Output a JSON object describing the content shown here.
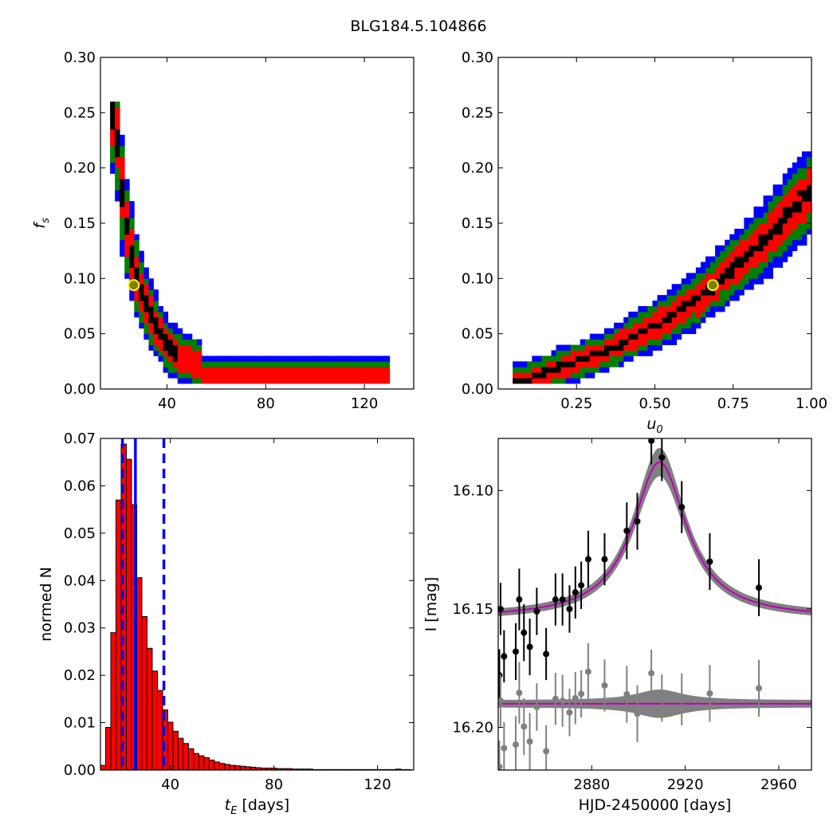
{
  "title": "BLG184.5.104866",
  "chart_data": [
    {
      "id": "tE_vs_fs",
      "type": "heatmap",
      "xlabel": "",
      "ylabel": "f_s",
      "xlim": [
        13,
        140
      ],
      "ylim": [
        0.0,
        0.3
      ],
      "xticks": [
        40,
        80,
        120
      ],
      "yticks": [
        0.0,
        0.05,
        0.1,
        0.15,
        0.2,
        0.25,
        0.3
      ],
      "ytick_labels": [
        "0.00",
        "0.05",
        "0.10",
        "0.15",
        "0.20",
        "0.25",
        "0.30"
      ],
      "levels": [
        "black",
        "red",
        "green",
        "blue"
      ],
      "curve": {
        "ridge_x": [
          19,
          20,
          21,
          23,
          24,
          26,
          28,
          30,
          33,
          36,
          40,
          45,
          50,
          55
        ],
        "ridge_y": [
          0.25,
          0.22,
          0.19,
          0.16,
          0.14,
          0.12,
          0.1,
          0.085,
          0.07,
          0.055,
          0.04,
          0.03,
          0.025,
          0.02
        ],
        "tail": {
          "x_from": 55,
          "x_to": 130,
          "y": 0.01
        }
      },
      "best_fit": {
        "x": 26.5,
        "y": 0.094
      }
    },
    {
      "id": "u0_vs_fs",
      "type": "heatmap",
      "xlabel": "u_0",
      "ylabel": "",
      "xlim": [
        0.0,
        1.0
      ],
      "ylim": [
        0.0,
        0.3
      ],
      "xticks": [
        0.25,
        0.5,
        0.75,
        1.0
      ],
      "xtick_labels": [
        "0.25",
        "0.50",
        "0.75",
        "1.00"
      ],
      "yticks": [
        0.0,
        0.05,
        0.1,
        0.15,
        0.2,
        0.25,
        0.3
      ],
      "ytick_labels": [
        "0.00",
        "0.05",
        "0.10",
        "0.15",
        "0.20",
        "0.25",
        "0.30"
      ],
      "levels": [
        "black",
        "red",
        "green",
        "blue"
      ],
      "curve": {
        "ridge_x": [
          0.08,
          0.15,
          0.25,
          0.35,
          0.45,
          0.55,
          0.65,
          0.75,
          0.85,
          0.95,
          1.0
        ],
        "ridge_y": [
          0.008,
          0.015,
          0.025,
          0.035,
          0.05,
          0.065,
          0.085,
          0.11,
          0.135,
          0.165,
          0.18
        ]
      },
      "best_fit": {
        "x": 0.685,
        "y": 0.094
      }
    },
    {
      "id": "tE_histogram",
      "type": "bar",
      "xlabel": "t_E [days]",
      "ylabel": "normed N",
      "xlim": [
        13,
        134
      ],
      "ylim": [
        0.0,
        0.07
      ],
      "xticks": [
        40,
        80,
        120
      ],
      "yticks": [
        0.0,
        0.01,
        0.02,
        0.03,
        0.04,
        0.05,
        0.06,
        0.07
      ],
      "ytick_labels": [
        "0.00",
        "0.01",
        "0.02",
        "0.03",
        "0.04",
        "0.05",
        "0.06",
        "0.07"
      ],
      "bin_start": 13,
      "bin_width": 2,
      "values": [
        0.001,
        0.009,
        0.029,
        0.057,
        0.0688,
        0.0656,
        0.056,
        0.0406,
        0.0324,
        0.0257,
        0.0209,
        0.0168,
        0.0127,
        0.0101,
        0.0082,
        0.0067,
        0.0056,
        0.0045,
        0.0035,
        0.003,
        0.0026,
        0.0021,
        0.0017,
        0.0014,
        0.0012,
        0.001,
        0.0009,
        0.0008,
        0.0007,
        0.0006,
        0.0005,
        0.0004,
        0.0004,
        0.0004,
        0.0003,
        0.0003,
        0.0003,
        0.0002,
        0.0002,
        0.0002,
        0.0002,
        0.0001,
        0.0001,
        0.0001,
        0.0001,
        0.0001,
        0.0001,
        0.0001,
        0.0001,
        0.0001,
        0.0001,
        0.0001,
        0.0001,
        0.0001,
        0.0001,
        0.0001,
        0.0001,
        0.0002,
        0.0001,
        0.0001
      ],
      "bar_color": "#ff0000",
      "vlines": [
        {
          "x": 26.5,
          "style": "solid",
          "color": "#0000ff"
        },
        {
          "x": 21.5,
          "style": "dashed",
          "color": "#0000ff"
        },
        {
          "x": 37.5,
          "style": "dashed",
          "color": "#0000ff"
        }
      ]
    },
    {
      "id": "lightcurve",
      "type": "scatter",
      "xlabel": "HJD-2450000 [days]",
      "ylabel": "I [mag]",
      "xlim": [
        2840,
        2974
      ],
      "ylim": [
        16.218,
        16.078
      ],
      "y_inverted": true,
      "xticks": [
        2880,
        2920,
        2960
      ],
      "yticks": [
        16.1,
        16.15,
        16.2
      ],
      "ytick_labels": [
        "16.10",
        "16.15",
        "16.20"
      ],
      "model": {
        "t0": 2909,
        "peak_mag": 16.088,
        "base_mag": 16.154,
        "width": 14,
        "color": "#bb00bb"
      },
      "model_band_color": "#808080",
      "points": [
        {
          "x": 2840.5,
          "y": 16.178,
          "err": 0.011
        },
        {
          "x": 2841.0,
          "y": 16.15,
          "err": 0.011
        },
        {
          "x": 2842.5,
          "y": 16.17,
          "err": 0.011
        },
        {
          "x": 2847.5,
          "y": 16.168,
          "err": 0.012
        },
        {
          "x": 2849.0,
          "y": 16.146,
          "err": 0.013
        },
        {
          "x": 2851.0,
          "y": 16.16,
          "err": 0.012
        },
        {
          "x": 2853.5,
          "y": 16.166,
          "err": 0.012
        },
        {
          "x": 2856.5,
          "y": 16.151,
          "err": 0.01
        },
        {
          "x": 2860.5,
          "y": 16.169,
          "err": 0.011
        },
        {
          "x": 2864.5,
          "y": 16.146,
          "err": 0.011
        },
        {
          "x": 2867.5,
          "y": 16.146,
          "err": 0.011
        },
        {
          "x": 2870.5,
          "y": 16.15,
          "err": 0.01
        },
        {
          "x": 2873.0,
          "y": 16.143,
          "err": 0.011
        },
        {
          "x": 2875.5,
          "y": 16.14,
          "err": 0.01
        },
        {
          "x": 2878.5,
          "y": 16.129,
          "err": 0.012
        },
        {
          "x": 2885.5,
          "y": 16.129,
          "err": 0.011
        },
        {
          "x": 2895.0,
          "y": 16.117,
          "err": 0.012
        },
        {
          "x": 2899.5,
          "y": 16.113,
          "err": 0.012
        },
        {
          "x": 2905.5,
          "y": 16.079,
          "err": 0.01
        },
        {
          "x": 2910.0,
          "y": 16.086,
          "err": 0.01
        },
        {
          "x": 2918.5,
          "y": 16.107,
          "err": 0.011
        },
        {
          "x": 2930.5,
          "y": 16.13,
          "err": 0.012
        },
        {
          "x": 2951.5,
          "y": 16.141,
          "err": 0.012
        }
      ],
      "residual_offset": 16.19,
      "residual_color": "#808080",
      "residual_line_color": "#bb00bb"
    }
  ]
}
